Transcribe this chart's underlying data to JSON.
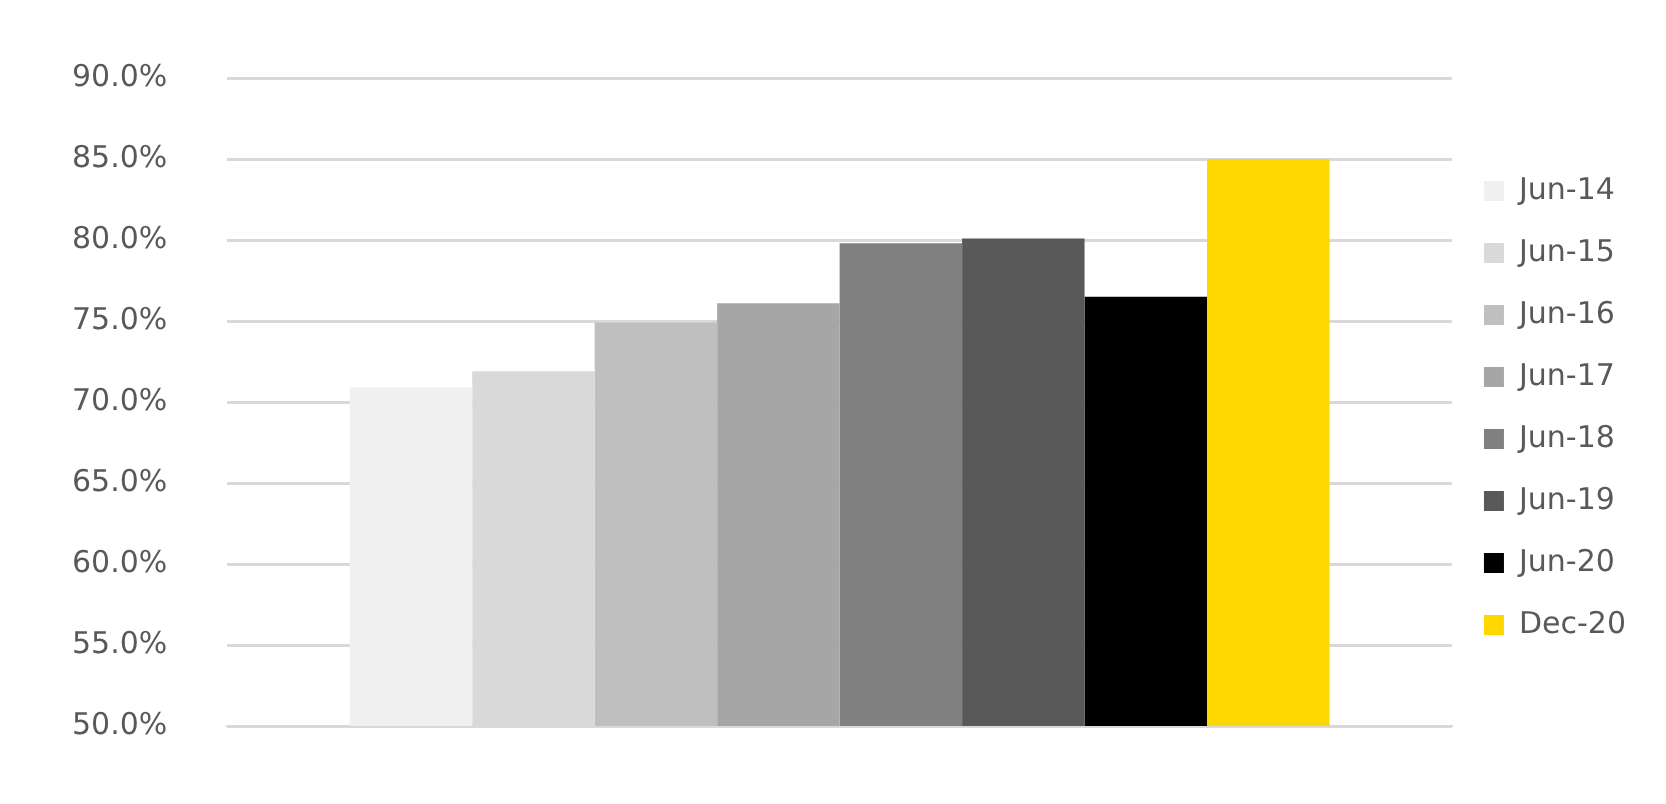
{
  "chart_data": {
    "type": "bar",
    "categories": [
      null
    ],
    "series": [
      {
        "name": "Jun-14",
        "color": "#f0f0f0",
        "values": [
          70.9
        ]
      },
      {
        "name": "Jun-15",
        "color": "#d9d9d9",
        "values": [
          71.9
        ]
      },
      {
        "name": "Jun-16",
        "color": "#bfbfbf",
        "values": [
          74.9
        ]
      },
      {
        "name": "Jun-17",
        "color": "#a6a6a6",
        "values": [
          76.1
        ]
      },
      {
        "name": "Jun-18",
        "color": "#808080",
        "values": [
          79.8
        ]
      },
      {
        "name": "Jun-19",
        "color": "#595959",
        "values": [
          80.1
        ]
      },
      {
        "name": "Jun-20",
        "color": "#000000",
        "values": [
          76.5
        ]
      },
      {
        "name": "Dec-20",
        "color": "#ffd700",
        "values": [
          85.0
        ]
      }
    ],
    "ylim": [
      50,
      90
    ],
    "yticks": [
      {
        "value": 50,
        "label": "50.0%"
      },
      {
        "value": 55,
        "label": "55.0%"
      },
      {
        "value": 60,
        "label": "60.0%"
      },
      {
        "value": 65,
        "label": "65.0%"
      },
      {
        "value": 70,
        "label": "70.0%"
      },
      {
        "value": 75,
        "label": "75.0%"
      },
      {
        "value": 80,
        "label": "80.0%"
      },
      {
        "value": 85,
        "label": "85.0%"
      },
      {
        "value": 90,
        "label": "90.0%"
      }
    ],
    "grid": "y",
    "legend": "right"
  }
}
